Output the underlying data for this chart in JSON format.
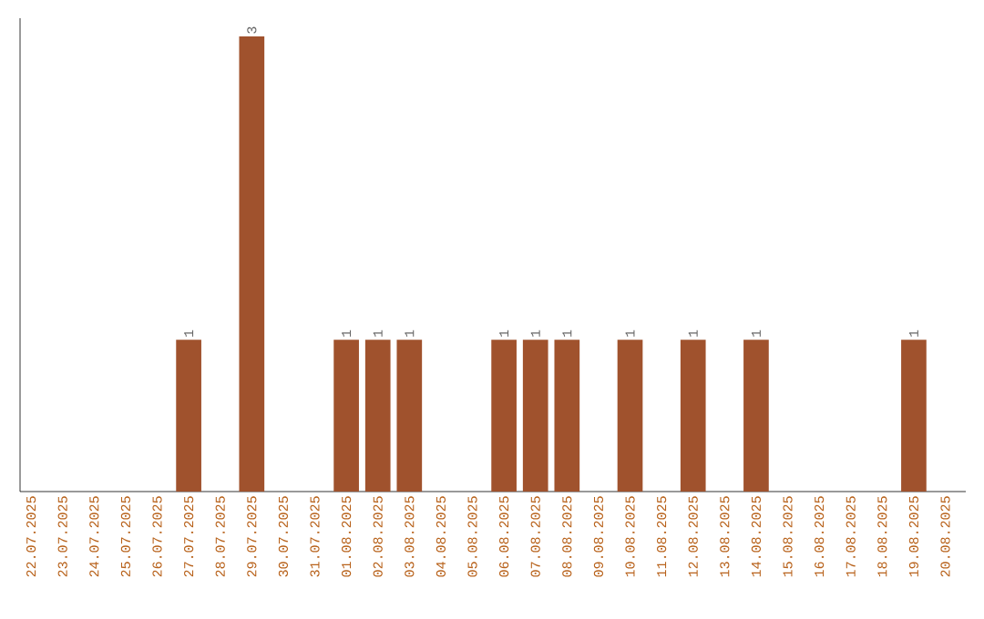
{
  "chart_data": {
    "type": "bar",
    "categories": [
      "22.07.2025",
      "23.07.2025",
      "24.07.2025",
      "25.07.2025",
      "26.07.2025",
      "27.07.2025",
      "28.07.2025",
      "29.07.2025",
      "30.07.2025",
      "31.07.2025",
      "01.08.2025",
      "02.08.2025",
      "03.08.2025",
      "04.08.2025",
      "05.08.2025",
      "06.08.2025",
      "07.08.2025",
      "08.08.2025",
      "09.08.2025",
      "10.08.2025",
      "11.08.2025",
      "12.08.2025",
      "13.08.2025",
      "14.08.2025",
      "15.08.2025",
      "16.08.2025",
      "17.08.2025",
      "18.08.2025",
      "19.08.2025",
      "20.08.2025"
    ],
    "values": [
      0,
      0,
      0,
      0,
      0,
      1,
      0,
      3,
      0,
      0,
      1,
      1,
      1,
      0,
      0,
      1,
      1,
      1,
      0,
      1,
      0,
      1,
      0,
      1,
      0,
      0,
      0,
      0,
      1,
      0
    ],
    "value_labels": [
      null,
      null,
      null,
      null,
      null,
      "1",
      null,
      "3",
      null,
      null,
      "1",
      "1",
      "1",
      null,
      null,
      "1",
      "1",
      "1",
      null,
      "1",
      null,
      "1",
      null,
      "1",
      null,
      null,
      null,
      null,
      "1",
      null
    ],
    "color": "#a0522d",
    "tick_labels": "x",
    "grid": false
  }
}
